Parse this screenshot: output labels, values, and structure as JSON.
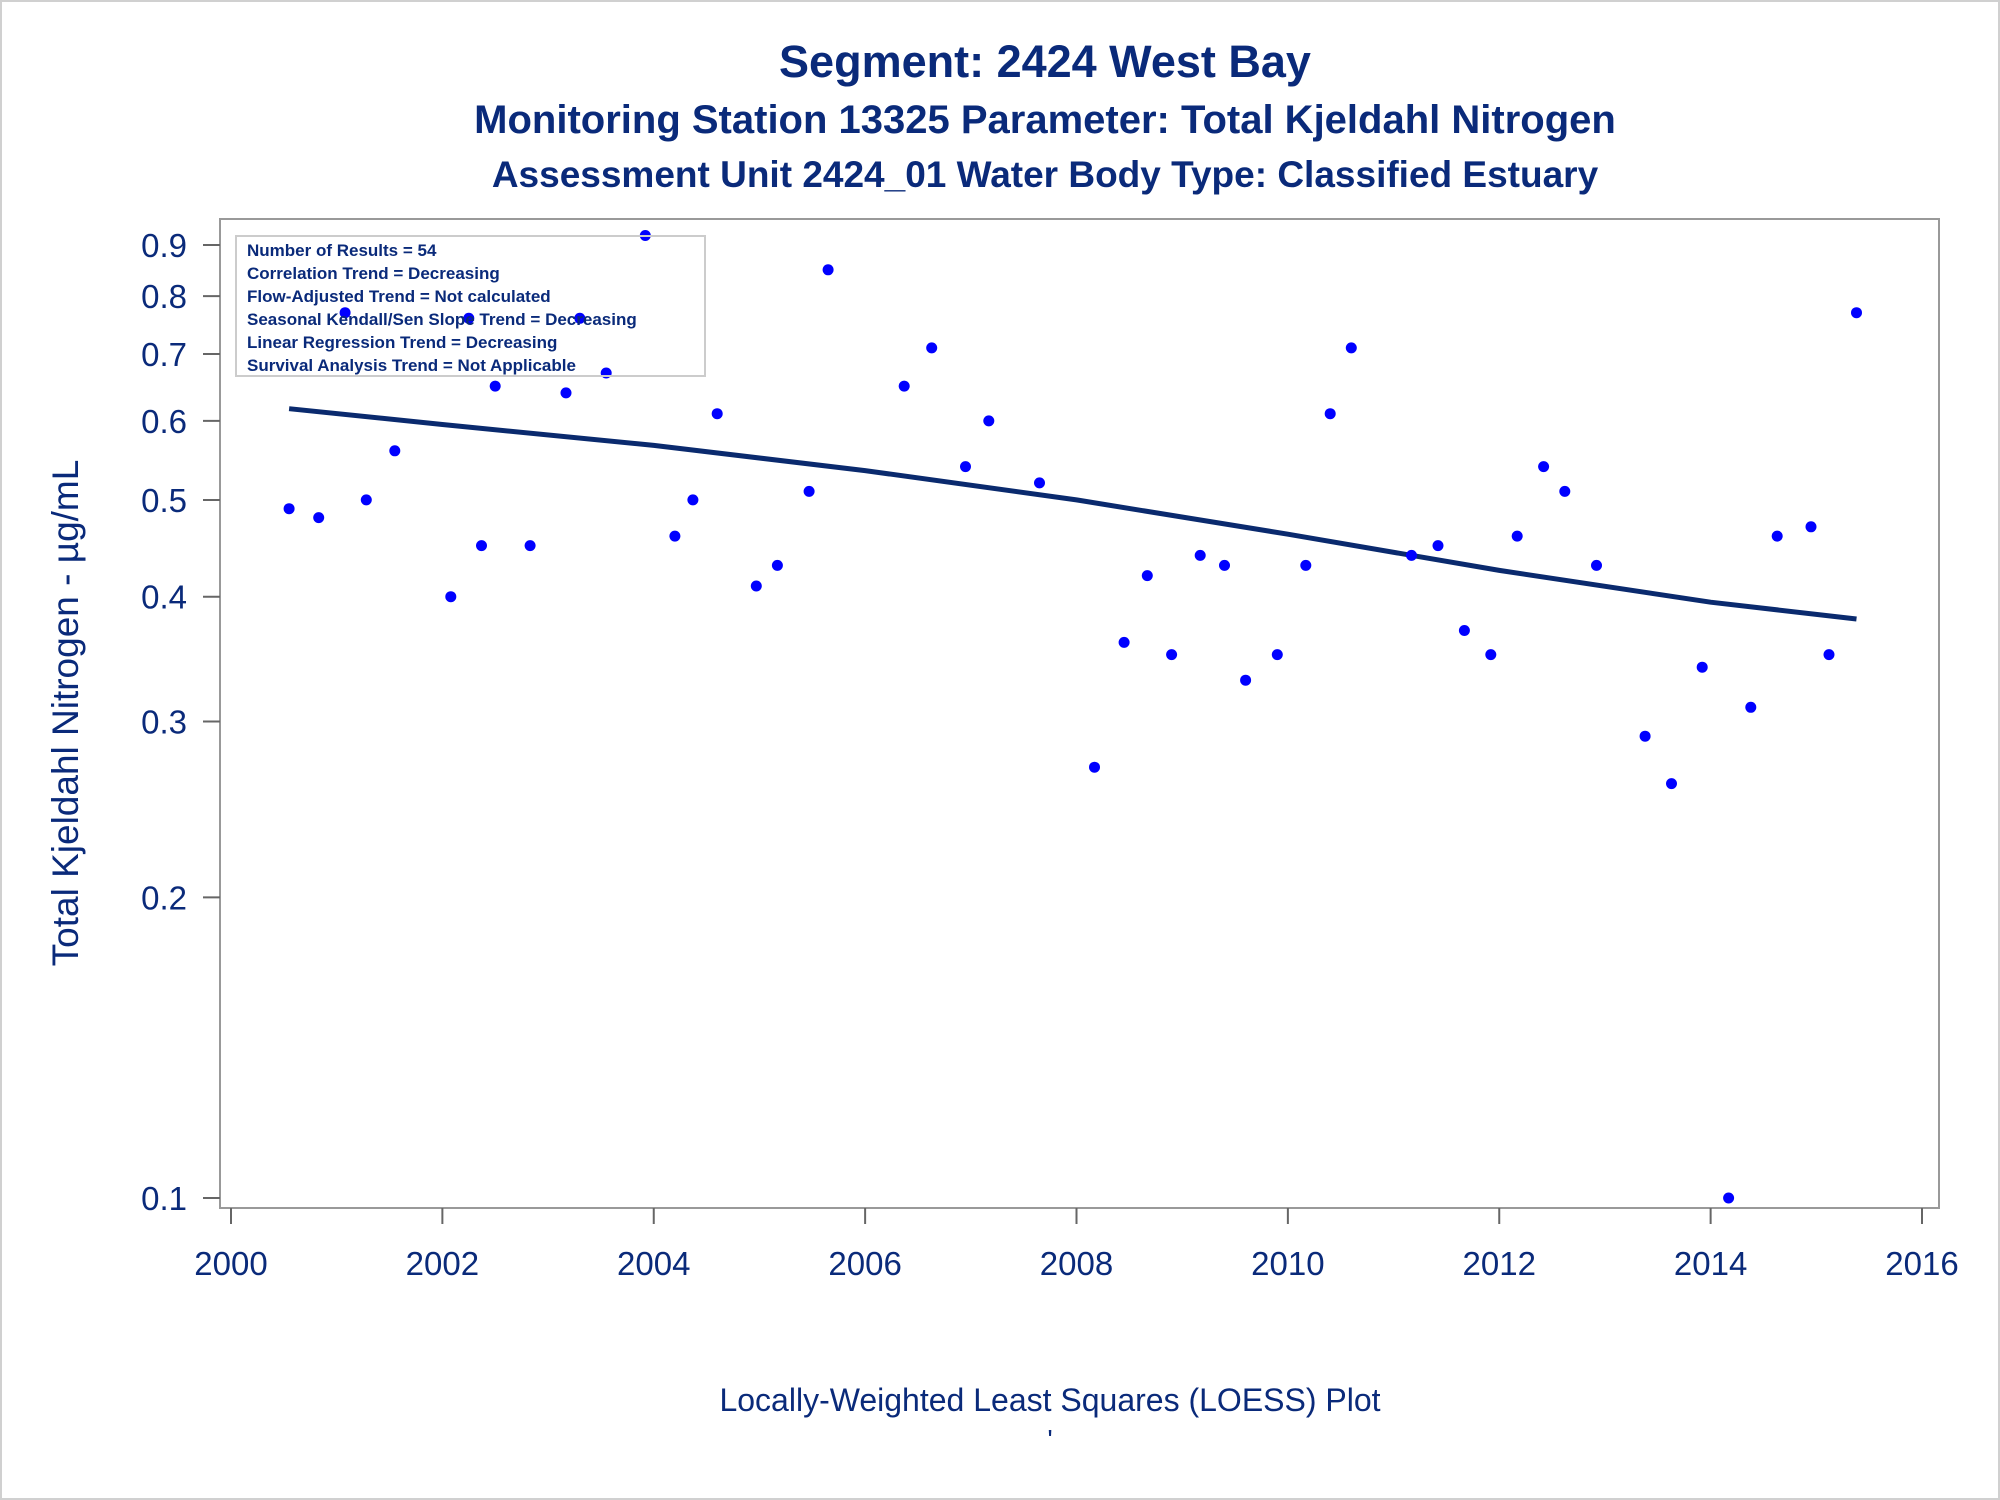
{
  "chart_data": {
    "type": "scatter",
    "title": "Segment: 2424  West Bay",
    "subtitle": "Monitoring Station 13325 Parameter: Total Kjeldahl Nitrogen",
    "subtitle2": "Assessment Unit 2424_01   Water Body Type: Classified Estuary",
    "xlabel": "",
    "ylabel": "Total Kjeldahl Nitrogen -  µg/mL",
    "x_scale": "linear",
    "y_scale": "log",
    "xlim": [
      2000,
      2016
    ],
    "ylim": [
      0.1,
      0.95
    ],
    "x_ticks": [
      "2000",
      "2002",
      "2004",
      "2006",
      "2008",
      "2010",
      "2012",
      "2014",
      "2016"
    ],
    "y_ticks": [
      "0.1",
      "0.2",
      "0.3",
      "0.4",
      "0.5",
      "0.6",
      "0.7",
      "0.8",
      "0.9"
    ],
    "grid": false,
    "legend_position": "top-left",
    "stats_box": [
      "Number of Results = 54",
      "Correlation Trend = Decreasing",
      "Flow-Adjusted Trend = Not calculated",
      "Seasonal Kendall/Sen Slope Trend = Decreasing",
      "Linear Regression Trend = Decreasing",
      "Survival Analysis Trend = Not Applicable"
    ],
    "series": [
      {
        "kind": "points",
        "color": "#0000ff",
        "x": [
          2000.55,
          2000.83,
          2001.08,
          2001.28,
          2001.55,
          2002.08,
          2002.25,
          2002.37,
          2002.5,
          2002.83,
          2003.17,
          2003.3,
          2003.55,
          2003.92,
          2004.2,
          2004.37,
          2004.6,
          2004.97,
          2005.17,
          2005.47,
          2005.65,
          2006.37,
          2006.63,
          2006.95,
          2007.17,
          2007.65,
          2008.17,
          2008.45,
          2008.67,
          2008.9,
          2009.17,
          2009.4,
          2009.6,
          2009.9,
          2010.17,
          2010.4,
          2010.6,
          2011.17,
          2011.42,
          2011.67,
          2011.92,
          2012.17,
          2012.42,
          2012.62,
          2012.92,
          2013.38,
          2013.63,
          2013.92,
          2014.17,
          2014.38,
          2014.63,
          2014.95,
          2015.12,
          2015.38
        ],
        "y": [
          0.49,
          0.48,
          0.77,
          0.5,
          0.56,
          0.4,
          0.76,
          0.45,
          0.65,
          0.45,
          0.64,
          0.76,
          0.67,
          0.92,
          0.46,
          0.5,
          0.61,
          0.41,
          0.43,
          0.51,
          0.85,
          0.65,
          0.71,
          0.54,
          0.6,
          0.52,
          0.27,
          0.36,
          0.42,
          0.35,
          0.44,
          0.43,
          0.33,
          0.35,
          0.43,
          0.61,
          0.71,
          0.44,
          0.45,
          0.37,
          0.35,
          0.46,
          0.54,
          0.51,
          0.43,
          0.29,
          0.26,
          0.34,
          0.1,
          0.31,
          0.46,
          0.47,
          0.35,
          0.77
        ]
      },
      {
        "kind": "loess-line",
        "color": "#0a2a6e",
        "x": [
          2000.55,
          2002.0,
          2004.0,
          2006.0,
          2008.0,
          2010.0,
          2012.0,
          2014.0,
          2015.38
        ],
        "y": [
          0.617,
          0.595,
          0.567,
          0.535,
          0.5,
          0.462,
          0.425,
          0.395,
          0.38
        ]
      }
    ]
  },
  "footer": {
    "caption": "Locally-Weighted Least Squares (LOESS) Plot",
    "mark": "'"
  }
}
